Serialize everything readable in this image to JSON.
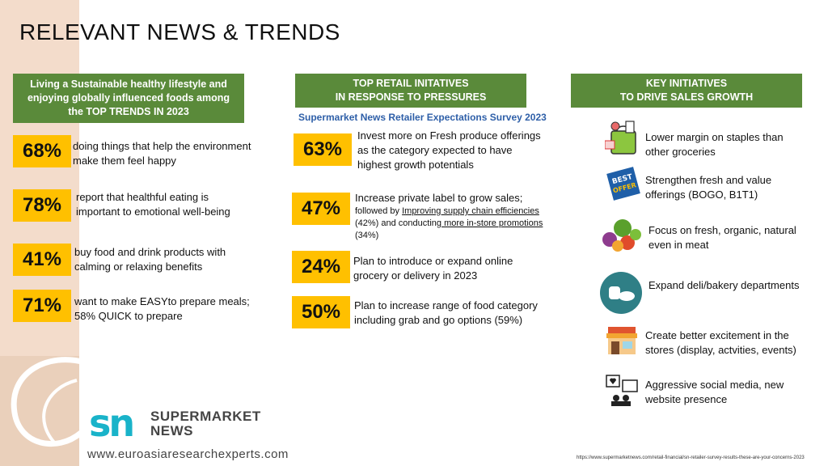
{
  "page": {
    "title": "RELEVANT NEWS & TRENDS",
    "website": "www.euroasiaresearchexperts.com",
    "source_url": "https://www.supermarketnews.com/retail-financial/sn-retailer-survey-results-these-are-your-concerns-2023",
    "logo": {
      "mark": "sn",
      "line1": "SUPERMARKET",
      "line2": "NEWS"
    }
  },
  "colors": {
    "green": "#5a8a3a",
    "yellow": "#ffc000",
    "teal": "#19b3c9",
    "blue_text": "#2e5fa8",
    "peach": "#f3dccb"
  },
  "trends": {
    "header": "Living a Sustainable healthy lifestyle and\nenjoying globally influenced foods among\nthe TOP TRENDS IN 2023",
    "items": [
      {
        "pct": "68%",
        "text": "doing things that help the environment make them feel happy"
      },
      {
        "pct": "78%",
        "text": "report that healthful eating is important to emotional well-being"
      },
      {
        "pct": "41%",
        "text": "buy food and drink products with calming or relaxing benefits"
      },
      {
        "pct": "71%",
        "text": "want to make EASYto prepare meals; 58% QUICK to prepare"
      }
    ]
  },
  "retail": {
    "header": "TOP RETAIL  INITATIVES\nIN RESPONSE TO PRESSURES",
    "survey": "Supermarket News Retailer Expectations Survey 2023",
    "items": [
      {
        "pct": "63%",
        "text": "Invest more on Fresh produce offerings  as the category expected to have highest growth potentials"
      },
      {
        "pct": "47%",
        "text": "Increase private label to grow sales;",
        "detail": {
          "a": "followed by ",
          "b": "Improving supply chain efficiencies",
          "c": " (42%) and conducting",
          "d": " more in-store promotions",
          "e": " (34%)"
        }
      },
      {
        "pct": "24%",
        "text": "Plan to introduce or expand online grocery or delivery in 2023"
      },
      {
        "pct": "50%",
        "text": "Plan to increase range of food category including grab and go options (59%)"
      }
    ]
  },
  "initiatives": {
    "header": "KEY INITIATIVES\nTO DRIVE SALES GROWTH",
    "items": [
      {
        "icon": "grocery-bag-icon",
        "text": "Lower margin on staples than other groceries"
      },
      {
        "icon": "best-offer-tag-icon",
        "text": "Strengthen fresh and  value offerings (BOGO, B1T1)"
      },
      {
        "icon": "vegetables-icon",
        "text": "Focus on fresh, organic, natural even in meat"
      },
      {
        "icon": "bakery-icon",
        "text": "Expand deli/bakery departments"
      },
      {
        "icon": "storefront-icon",
        "text": "Create better excitement in the stores (display, actvities, events)"
      },
      {
        "icon": "social-media-icon",
        "text": "Aggressive social media, new website presence"
      }
    ]
  }
}
